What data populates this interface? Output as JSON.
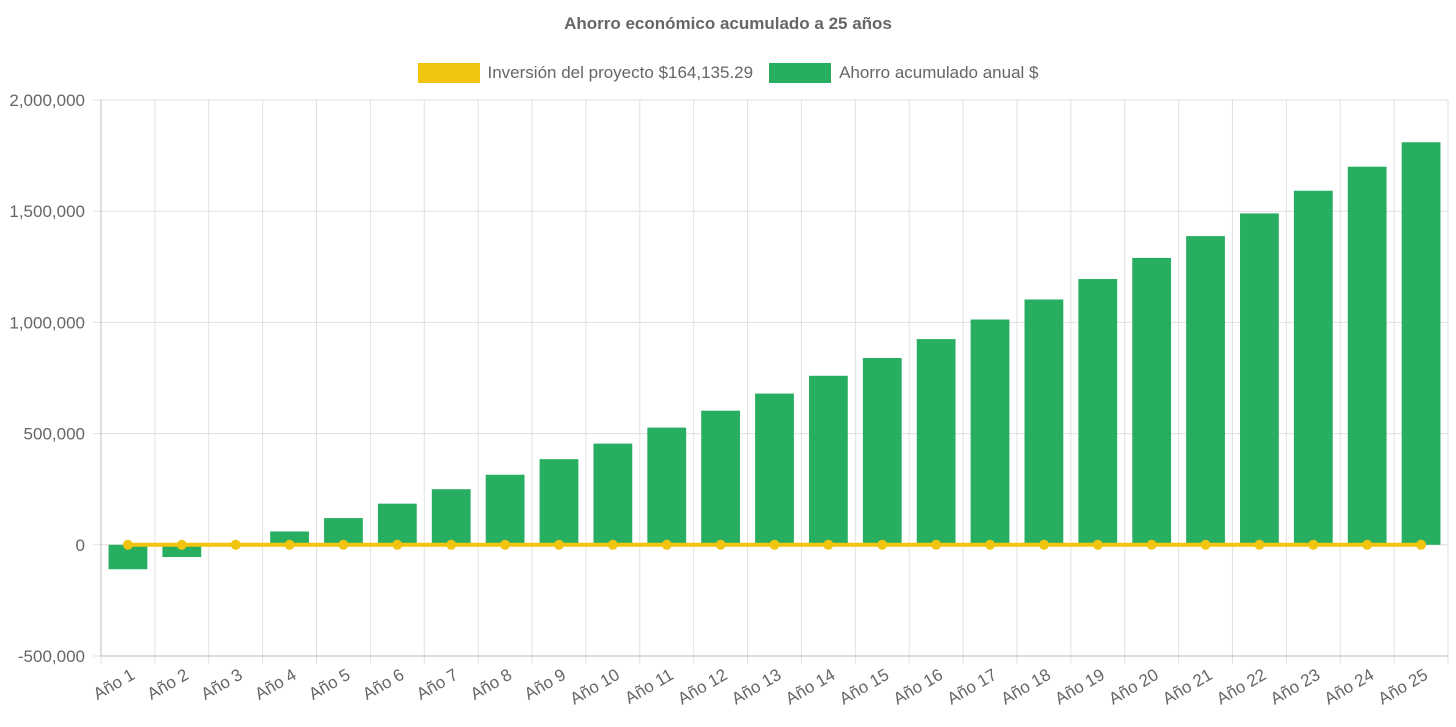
{
  "chart_data": {
    "type": "bar",
    "title": "Ahorro económico acumulado a 25 años",
    "categories": [
      "Año 1",
      "Año 2",
      "Año 3",
      "Año 4",
      "Año 5",
      "Año 6",
      "Año 7",
      "Año 8",
      "Año 9",
      "Año 10",
      "Año 11",
      "Año 12",
      "Año 13",
      "Año 14",
      "Año 15",
      "Año 16",
      "Año 17",
      "Año 18",
      "Año 19",
      "Año 20",
      "Año 21",
      "Año 22",
      "Año 23",
      "Año 24",
      "Año 25"
    ],
    "series": [
      {
        "name": "Inversión del proyecto $164,135.29",
        "type": "line",
        "color": "#f1c40f",
        "values": [
          0,
          0,
          0,
          0,
          0,
          0,
          0,
          0,
          0,
          0,
          0,
          0,
          0,
          0,
          0,
          0,
          0,
          0,
          0,
          0,
          0,
          0,
          0,
          0,
          0
        ]
      },
      {
        "name": "Ahorro acumulado anual $",
        "type": "bar",
        "color": "#27ae60",
        "values": [
          -110000,
          -55000,
          0,
          60000,
          120000,
          185000,
          250000,
          315000,
          385000,
          455000,
          527000,
          603000,
          680000,
          760000,
          840000,
          925000,
          1013000,
          1103000,
          1195000,
          1290000,
          1388000,
          1490000,
          1592000,
          1700000,
          1810000
        ]
      }
    ],
    "y_ticks": [
      "2,000,000",
      "1,500,000",
      "1,000,000",
      "500,000",
      "0",
      "-500,000"
    ],
    "ylim": [
      -500000,
      2000000
    ],
    "xlabel": "",
    "ylabel": "",
    "grid": true,
    "legend_position": "top"
  }
}
